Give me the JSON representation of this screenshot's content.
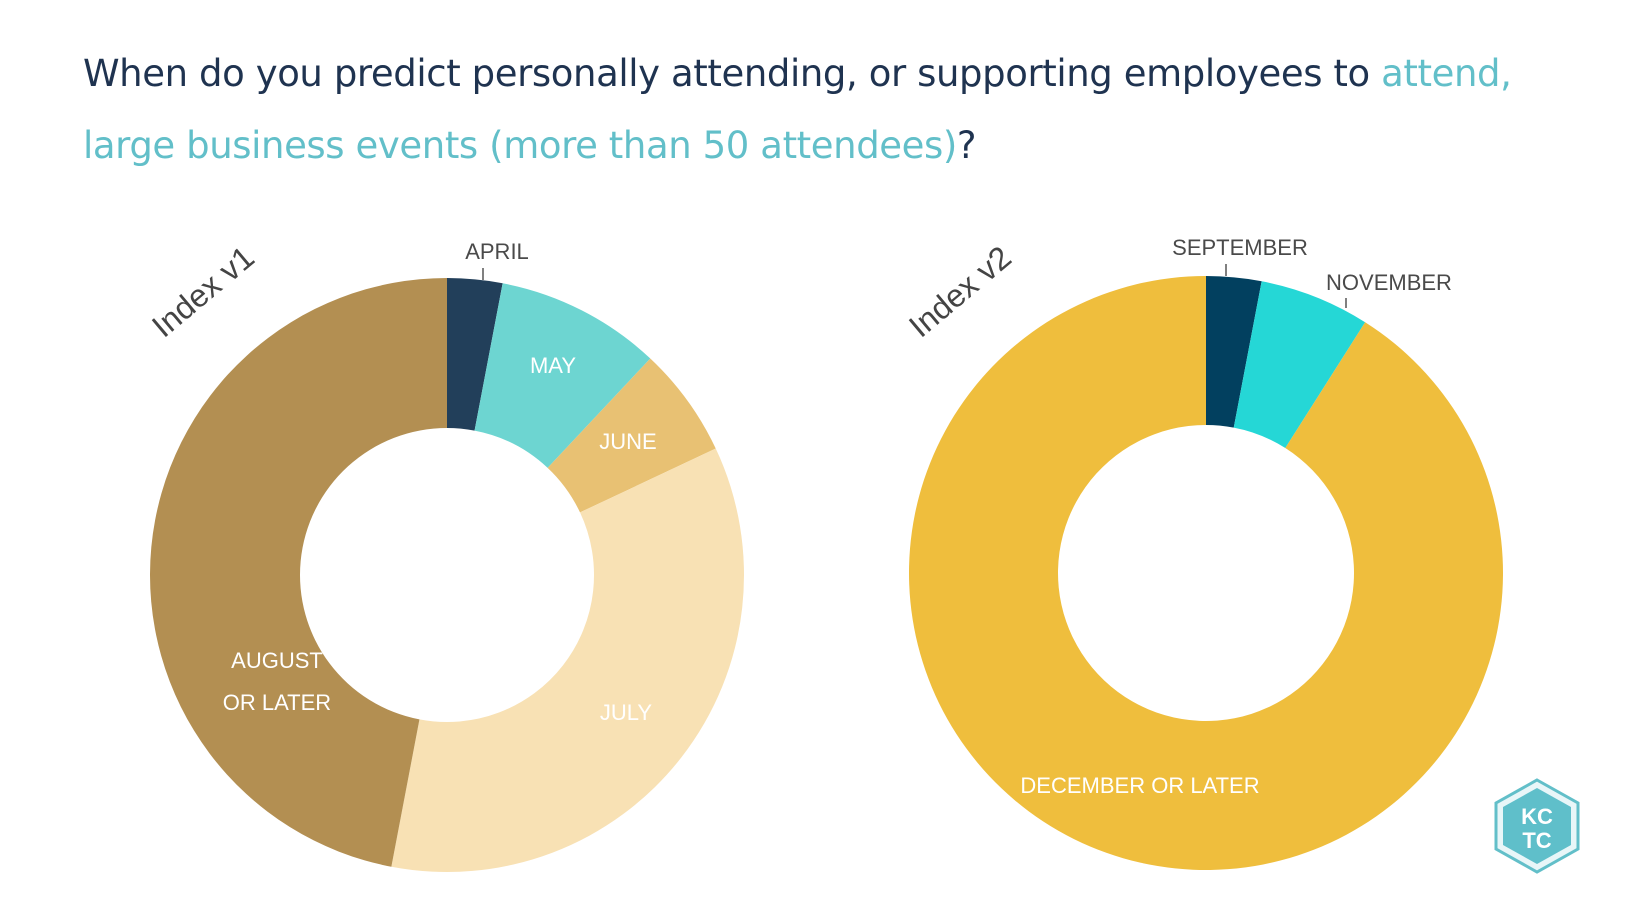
{
  "title": {
    "part1": "When do you predict personally attending, or supporting employees to ",
    "highlight": "attend, large business events (more than 50 attendees)",
    "part2": "?"
  },
  "logo": {
    "line1": "KC",
    "line2": "TC"
  },
  "chart_data": [
    {
      "type": "pie",
      "variant": "donut",
      "title": "Index v1",
      "categories": [
        "APRIL",
        "MAY",
        "JUNE",
        "JULY",
        "AUGUST OR LATER"
      ],
      "label_lines": [
        [
          "APRIL"
        ],
        [
          "MAY"
        ],
        [
          "JUNE"
        ],
        [
          "JULY"
        ],
        [
          "AUGUST",
          "OR LATER"
        ]
      ],
      "values": [
        3,
        9,
        6,
        35,
        47
      ],
      "colors": [
        "#223f5a",
        "#6dd5d1",
        "#e8c173",
        "#f8e1b4",
        "#b38f52"
      ],
      "label_placement": [
        "outside",
        "inside",
        "inside",
        "inside",
        "inside"
      ]
    },
    {
      "type": "pie",
      "variant": "donut",
      "title": "Index v2",
      "categories": [
        "SEPTEMBER",
        "NOVEMBER",
        "DECEMBER OR LATER"
      ],
      "label_lines": [
        [
          "SEPTEMBER"
        ],
        [
          "NOVEMBER"
        ],
        [
          "DECEMBER OR LATER"
        ]
      ],
      "values": [
        3,
        6,
        91
      ],
      "colors": [
        "#02405f",
        "#25d7d6",
        "#efbe3d"
      ],
      "label_placement": [
        "outside",
        "outside",
        "inside"
      ]
    }
  ]
}
